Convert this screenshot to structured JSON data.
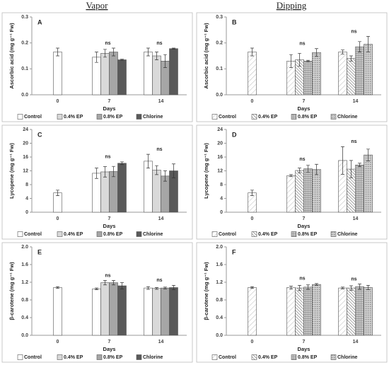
{
  "headers": [
    "Vapor",
    "Dipping"
  ],
  "chart_data": [
    {
      "type": "bar",
      "label": "A",
      "ylabel": "Ascorbic acid (mg g⁻¹ Fw)",
      "xlabel": "Days",
      "categories": [
        "0",
        "7",
        "14"
      ],
      "ylim": [
        0,
        0.3
      ],
      "yticks": [
        {
          "value": 0,
          "label": "0.0"
        },
        0.1,
        0.2,
        0.3
      ],
      "series": [
        {
          "name": "Control",
          "color": "#ffffff",
          "values": [
            0.165,
            0.145,
            0.165
          ],
          "errors": [
            0.015,
            0.02,
            0.015
          ]
        },
        {
          "name": "0.4% EP",
          "color": "#d9d9d9",
          "values": [
            null,
            0.16,
            0.15
          ],
          "errors": [
            null,
            0.015,
            0.015
          ]
        },
        {
          "name": "0.8% EP",
          "color": "#a6a6a6",
          "values": [
            null,
            0.165,
            0.13
          ],
          "errors": [
            null,
            0.015,
            0.025
          ]
        },
        {
          "name": "Chlorine",
          "color": "#595959",
          "values": [
            null,
            0.135,
            0.178
          ],
          "errors": [
            null,
            0.002,
            0.002
          ]
        }
      ],
      "annotations": [
        {
          "text": "ns",
          "x": "7"
        },
        {
          "text": "ns",
          "x": "14"
        }
      ]
    },
    {
      "type": "bar",
      "label": "B",
      "ylabel": "Ascorbic acid (mg g⁻¹ Fw)",
      "xlabel": "Days",
      "categories": [
        "0",
        "7",
        "14"
      ],
      "ylim": [
        0,
        0.3
      ],
      "yticks": [
        {
          "value": 0,
          "label": "0.0"
        },
        0.1,
        0.2,
        0.3
      ],
      "series": [
        {
          "name": "Control",
          "color": "#ffffff",
          "pattern": "diag-light",
          "values": [
            0.165,
            0.13,
            0.165
          ],
          "errors": [
            0.015,
            0.025,
            0.008
          ]
        },
        {
          "name": "0.4% EP",
          "color": "#ffffff",
          "pattern": "diag",
          "values": [
            null,
            0.135,
            0.14
          ],
          "errors": [
            null,
            0.025,
            0.01
          ]
        },
        {
          "name": "0.8% EP",
          "color": "#bfbfbf",
          "pattern": "cross",
          "values": [
            null,
            0.13,
            0.185
          ],
          "errors": [
            null,
            0.003,
            0.02
          ]
        },
        {
          "name": "Chlorine",
          "color": "#bfbfbf",
          "pattern": "dots",
          "values": [
            null,
            0.163,
            0.195
          ],
          "errors": [
            null,
            0.015,
            0.03
          ]
        }
      ],
      "annotations": [
        {
          "text": "ns",
          "x": "7"
        },
        {
          "text": "ns",
          "x": "14"
        }
      ]
    },
    {
      "type": "bar",
      "label": "C",
      "ylabel": "Lycopene (mg g⁻¹ Fw)",
      "xlabel": "Days",
      "categories": [
        "0",
        "7",
        "14"
      ],
      "ylim": [
        0,
        24
      ],
      "yticks": [
        0,
        4,
        8,
        12,
        16,
        20,
        24
      ],
      "series": [
        {
          "name": "Control",
          "color": "#ffffff",
          "values": [
            5.6,
            11.3,
            14.8
          ],
          "errors": [
            0.8,
            1.5,
            2.0
          ]
        },
        {
          "name": "0.4% EP",
          "color": "#d9d9d9",
          "values": [
            null,
            11.7,
            12.2
          ],
          "errors": [
            null,
            1.5,
            1.3
          ]
        },
        {
          "name": "0.8% EP",
          "color": "#a6a6a6",
          "values": [
            null,
            11.8,
            10.5
          ],
          "errors": [
            null,
            1.5,
            1.5
          ]
        },
        {
          "name": "Chlorine",
          "color": "#595959",
          "values": [
            null,
            14.2,
            12.0
          ],
          "errors": [
            null,
            0.4,
            2.0
          ]
        }
      ],
      "annotations": [
        {
          "text": "ns",
          "x": "7"
        },
        {
          "text": "ns",
          "x": "14"
        }
      ]
    },
    {
      "type": "bar",
      "label": "D",
      "ylabel": "Lycopene (mg g⁻¹ Fw)",
      "xlabel": "Days",
      "categories": [
        "0",
        "7",
        "14"
      ],
      "ylim": [
        0,
        24
      ],
      "yticks": [
        0,
        4,
        8,
        12,
        16,
        20,
        24
      ],
      "series": [
        {
          "name": "Control",
          "color": "#ffffff",
          "pattern": "diag-light",
          "values": [
            5.6,
            10.6,
            15
          ],
          "errors": [
            0.8,
            0.3,
            4
          ]
        },
        {
          "name": "0.4% EP",
          "color": "#ffffff",
          "pattern": "diag",
          "values": [
            null,
            12.1,
            12.5
          ],
          "errors": [
            null,
            0.7,
            2.5
          ]
        },
        {
          "name": "0.8% EP",
          "color": "#bfbfbf",
          "pattern": "cross",
          "values": [
            null,
            12.6,
            13.7
          ],
          "errors": [
            null,
            1,
            0.5
          ]
        },
        {
          "name": "Chlorine",
          "color": "#bfbfbf",
          "pattern": "dots",
          "values": [
            null,
            12.4,
            16.6
          ],
          "errors": [
            null,
            1.5,
            1.7
          ]
        }
      ],
      "annotations": [
        {
          "text": "ns",
          "x": "7"
        },
        {
          "text": "ns",
          "x": "14"
        }
      ]
    },
    {
      "type": "bar",
      "label": "E",
      "ylabel": "β-carotene (mg g⁻¹ Fw)",
      "xlabel": "Days",
      "categories": [
        "0",
        "7",
        "14"
      ],
      "ylim": [
        0,
        2
      ],
      "yticks": [
        {
          "value": 0,
          "label": "0.0"
        },
        0.4,
        0.8,
        1.2,
        1.6,
        {
          "value": 2,
          "label": "2.0"
        }
      ],
      "series": [
        {
          "name": "Control",
          "color": "#ffffff",
          "values": [
            1.08,
            1.05,
            1.07
          ],
          "errors": [
            0.02,
            0.02,
            0.03
          ]
        },
        {
          "name": "0.4% EP",
          "color": "#d9d9d9",
          "values": [
            null,
            1.19,
            1.06
          ],
          "errors": [
            null,
            0.05,
            0.02
          ]
        },
        {
          "name": "0.8% EP",
          "color": "#a6a6a6",
          "values": [
            null,
            1.19,
            1.07
          ],
          "errors": [
            null,
            0.05,
            0.02
          ]
        },
        {
          "name": "Chlorine",
          "color": "#595959",
          "values": [
            null,
            1.12,
            1.08
          ],
          "errors": [
            null,
            0.07,
            0.05
          ]
        }
      ],
      "annotations": [
        {
          "text": "ns",
          "x": "7"
        },
        {
          "text": "ns",
          "x": "14"
        }
      ]
    },
    {
      "type": "bar",
      "label": "F",
      "ylabel": "β-carotene (mg g⁻¹ Fw)",
      "xlabel": "Days",
      "categories": [
        "0",
        "7",
        "14"
      ],
      "ylim": [
        0,
        2
      ],
      "yticks": [
        {
          "value": 0,
          "label": "0.0"
        },
        0.4,
        0.8,
        1.2,
        1.6,
        {
          "value": 2,
          "label": "2.0"
        }
      ],
      "series": [
        {
          "name": "Control",
          "color": "#ffffff",
          "pattern": "diag-light",
          "values": [
            1.08,
            1.08,
            1.07
          ],
          "errors": [
            0.02,
            0.03,
            0.02
          ]
        },
        {
          "name": "0.4% EP",
          "color": "#ffffff",
          "pattern": "diag",
          "values": [
            null,
            1.07,
            1.07
          ],
          "errors": [
            null,
            0.06,
            0.05
          ]
        },
        {
          "name": "0.8% EP",
          "color": "#bfbfbf",
          "pattern": "cross",
          "values": [
            null,
            1.09,
            1.1
          ],
          "errors": [
            null,
            0.05,
            0.06
          ]
        },
        {
          "name": "Chlorine",
          "color": "#bfbfbf",
          "pattern": "dots",
          "values": [
            null,
            1.15,
            1.08
          ],
          "errors": [
            null,
            0.02,
            0.05
          ]
        }
      ],
      "annotations": [
        {
          "text": "ns",
          "x": "7"
        },
        {
          "text": "ns",
          "x": "14"
        }
      ]
    }
  ]
}
